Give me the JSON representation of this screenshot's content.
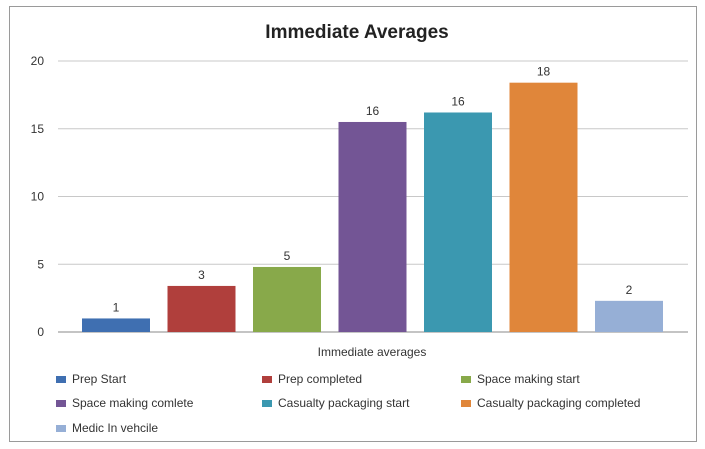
{
  "chart_data": {
    "type": "bar",
    "title": "Immediate Averages",
    "xlabel": "Immediate averages",
    "ylabel": "",
    "ylim": [
      0,
      20
    ],
    "yticks": [
      0,
      5,
      10,
      15,
      20
    ],
    "grid": true,
    "legend_position": "bottom",
    "series": [
      {
        "name": "Prep Start",
        "value": 1.0,
        "label": "1",
        "color": "#3f6fb1"
      },
      {
        "name": "Prep completed",
        "value": 3.4,
        "label": "3",
        "color": "#b03f3c"
      },
      {
        "name": "Space making start",
        "value": 4.8,
        "label": "5",
        "color": "#88a94a"
      },
      {
        "name": "Space making comlete",
        "value": 15.5,
        "label": "16",
        "color": "#735595"
      },
      {
        "name": "Casualty packaging start",
        "value": 16.2,
        "label": "16",
        "color": "#3b98b0"
      },
      {
        "name": "Casualty packaging completed",
        "value": 18.4,
        "label": "18",
        "color": "#e0863a"
      },
      {
        "name": "Medic In vehcile",
        "value": 2.3,
        "label": "2",
        "color": "#96afd6"
      }
    ]
  }
}
